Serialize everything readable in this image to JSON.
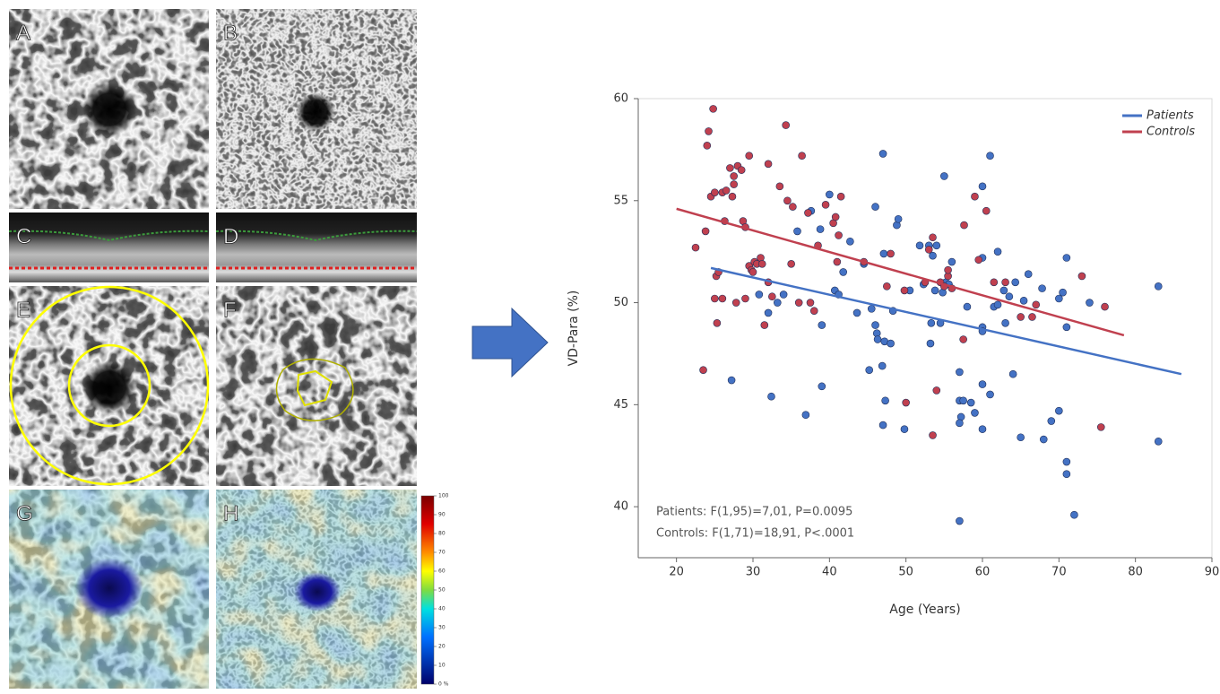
{
  "panels": {
    "labels": [
      "A",
      "B",
      "C",
      "D",
      "E",
      "F",
      "G",
      "H"
    ]
  },
  "colorbar": {
    "ticks": [
      100,
      90,
      80,
      70,
      60,
      50,
      40,
      30,
      20,
      10,
      {
        "value": 0,
        "label": "0 %"
      }
    ],
    "lim": [
      0,
      100
    ]
  },
  "chart_data": {
    "type": "scatter",
    "x_label": "Age (Years)",
    "y_label": "VD-Para (%)",
    "xlim": [
      15,
      90
    ],
    "xticks": [
      20,
      30,
      40,
      50,
      60,
      70,
      80,
      90
    ],
    "ylim": [
      37.5,
      60
    ],
    "yticks": [
      40,
      45,
      50,
      55,
      60
    ],
    "grid": false,
    "legend": "top-right",
    "annotations": [
      "Patients: F(1,95)=7,01,  P=0.0095",
      "Controls: F(1,71)=18,91,  P<.0001"
    ],
    "series": [
      {
        "name": "Patients",
        "color": "#4472c4",
        "x": [
          27.2,
          32.4,
          30.8,
          32.0,
          33.2,
          34.0,
          35.8,
          36.9,
          37.6,
          38.8,
          39.0,
          39.0,
          40.0,
          40.7,
          41.2,
          41.8,
          42.7,
          43.6,
          44.5,
          45.2,
          45.5,
          46.0,
          46.0,
          46.2,
          46.3,
          46.9,
          47.0,
          47.1,
          47.2,
          47.3,
          47.0,
          48.0,
          48.3,
          48.8,
          49.0,
          49.8,
          50.5,
          51.8,
          52.3,
          53.0,
          53.2,
          53.3,
          53.5,
          53.8,
          54.0,
          54.5,
          54.8,
          55.0,
          55.2,
          55.6,
          56.0,
          57.0,
          57.0,
          57.2,
          57.0,
          57.0,
          57.5,
          58.0,
          58.5,
          59.0,
          60.0,
          60.0,
          60.0,
          60.0,
          60.0,
          60.0,
          61.0,
          61.0,
          61.5,
          62.0,
          62.8,
          63.0,
          63.5,
          64.0,
          64.3,
          65.0,
          66.0,
          67.8,
          68.0,
          69.0,
          70.0,
          70.0,
          70.5,
          71.0,
          71.0,
          71.0,
          71.0,
          72.0,
          74.0,
          83.0,
          83.0,
          65.4,
          62.0
        ],
        "values": [
          46.2,
          45.4,
          50.4,
          49.5,
          50.0,
          50.4,
          53.5,
          44.5,
          54.5,
          53.6,
          48.9,
          45.9,
          55.3,
          50.6,
          50.4,
          51.5,
          53.0,
          49.5,
          51.9,
          46.7,
          49.7,
          54.7,
          48.9,
          48.5,
          48.2,
          46.9,
          57.3,
          52.4,
          48.1,
          45.2,
          44.0,
          48.0,
          49.6,
          53.8,
          54.1,
          43.8,
          50.6,
          52.8,
          50.9,
          52.8,
          48.0,
          49.0,
          52.3,
          50.6,
          52.8,
          49.0,
          50.5,
          56.2,
          51.0,
          50.9,
          52.0,
          46.6,
          45.2,
          44.4,
          44.1,
          39.3,
          45.2,
          49.8,
          45.1,
          44.6,
          55.7,
          52.2,
          48.8,
          48.6,
          46.0,
          43.8,
          57.2,
          45.5,
          49.8,
          52.5,
          50.6,
          49.0,
          50.3,
          46.5,
          51.0,
          43.4,
          51.4,
          50.7,
          43.3,
          44.2,
          44.7,
          50.2,
          50.5,
          52.2,
          48.8,
          42.2,
          41.6,
          39.6,
          50.0,
          43.2,
          50.8,
          50.1,
          49.9
        ],
        "fit": {
          "x": [
            24.5,
            86
          ],
          "values": [
            51.7,
            46.5
          ]
        }
      },
      {
        "name": "Controls",
        "color": "#c0404f",
        "x": [
          22.5,
          23.5,
          23.8,
          24.0,
          24.2,
          24.5,
          24.8,
          25.0,
          25.2,
          25.0,
          25.3,
          25.5,
          26.0,
          26.0,
          26.3,
          26.5,
          27.0,
          27.3,
          27.5,
          27.5,
          27.8,
          28.0,
          28.5,
          28.7,
          29.0,
          29.0,
          29.5,
          29.8,
          29.5,
          30.0,
          30.2,
          30.5,
          31.0,
          31.2,
          31.5,
          32.0,
          32.0,
          33.5,
          34.3,
          34.5,
          35.2,
          36.4,
          37.5,
          38.0,
          38.5,
          39.5,
          40.5,
          40.8,
          41.0,
          41.2,
          41.5,
          44.5,
          47.5,
          48.0,
          49.8,
          50.0,
          52.5,
          53.0,
          53.5,
          53.5,
          54.0,
          54.5,
          55.0,
          55.5,
          55.5,
          56.0,
          57.5,
          57.6,
          59.0,
          59.5,
          60.5,
          61.5,
          63.0,
          65.0,
          66.5,
          67.0,
          73.0,
          75.5,
          76.0,
          35.0,
          36.0,
          32.5,
          37.2
        ],
        "values": [
          52.7,
          46.7,
          53.5,
          57.7,
          58.4,
          55.2,
          59.5,
          55.4,
          51.3,
          50.2,
          49.0,
          51.5,
          50.2,
          55.4,
          54.0,
          55.5,
          56.6,
          55.2,
          55.8,
          56.2,
          50.0,
          56.7,
          56.5,
          54.0,
          53.7,
          50.2,
          51.8,
          51.6,
          57.2,
          51.5,
          52.0,
          51.9,
          52.2,
          51.9,
          48.9,
          56.8,
          51.0,
          55.7,
          58.7,
          55.0,
          54.7,
          57.2,
          50.0,
          49.6,
          52.8,
          54.8,
          53.9,
          54.2,
          52.0,
          53.3,
          55.2,
          52.0,
          50.8,
          52.4,
          50.6,
          45.1,
          51.0,
          52.6,
          53.2,
          43.5,
          45.7,
          51.0,
          50.8,
          51.3,
          51.6,
          50.7,
          48.2,
          53.8,
          55.2,
          52.1,
          54.5,
          51.0,
          51.0,
          49.3,
          49.3,
          49.9,
          51.3,
          43.9,
          49.8,
          51.9,
          50.0,
          50.3,
          54.4
        ],
        "fit": {
          "x": [
            20,
            78.5
          ],
          "values": [
            54.6,
            48.4
          ]
        }
      }
    ]
  }
}
